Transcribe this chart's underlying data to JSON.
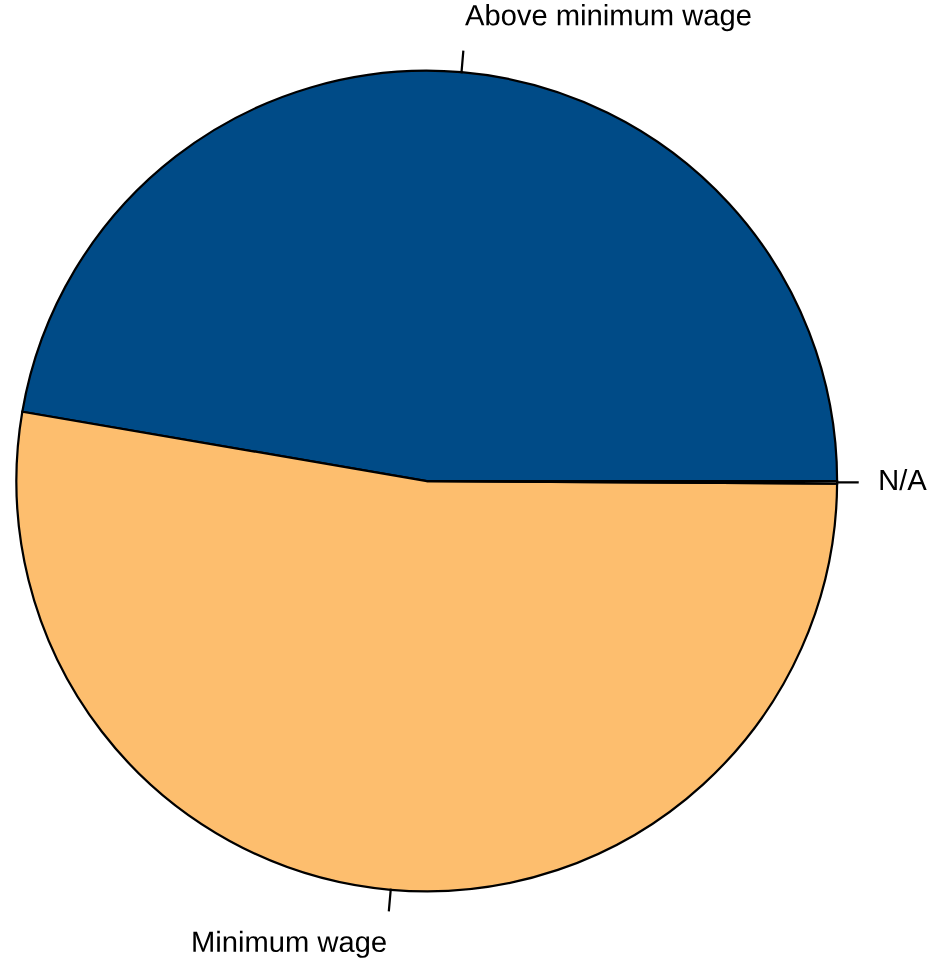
{
  "chart_data": {
    "type": "pie",
    "categories": [
      "Above minimum wage",
      "Minimum wage",
      "N/A"
    ],
    "values": [
      47.3,
      52.6,
      0.1
    ],
    "colors": [
      "#004b87",
      "#fdbe6e",
      "#ffffff"
    ]
  }
}
